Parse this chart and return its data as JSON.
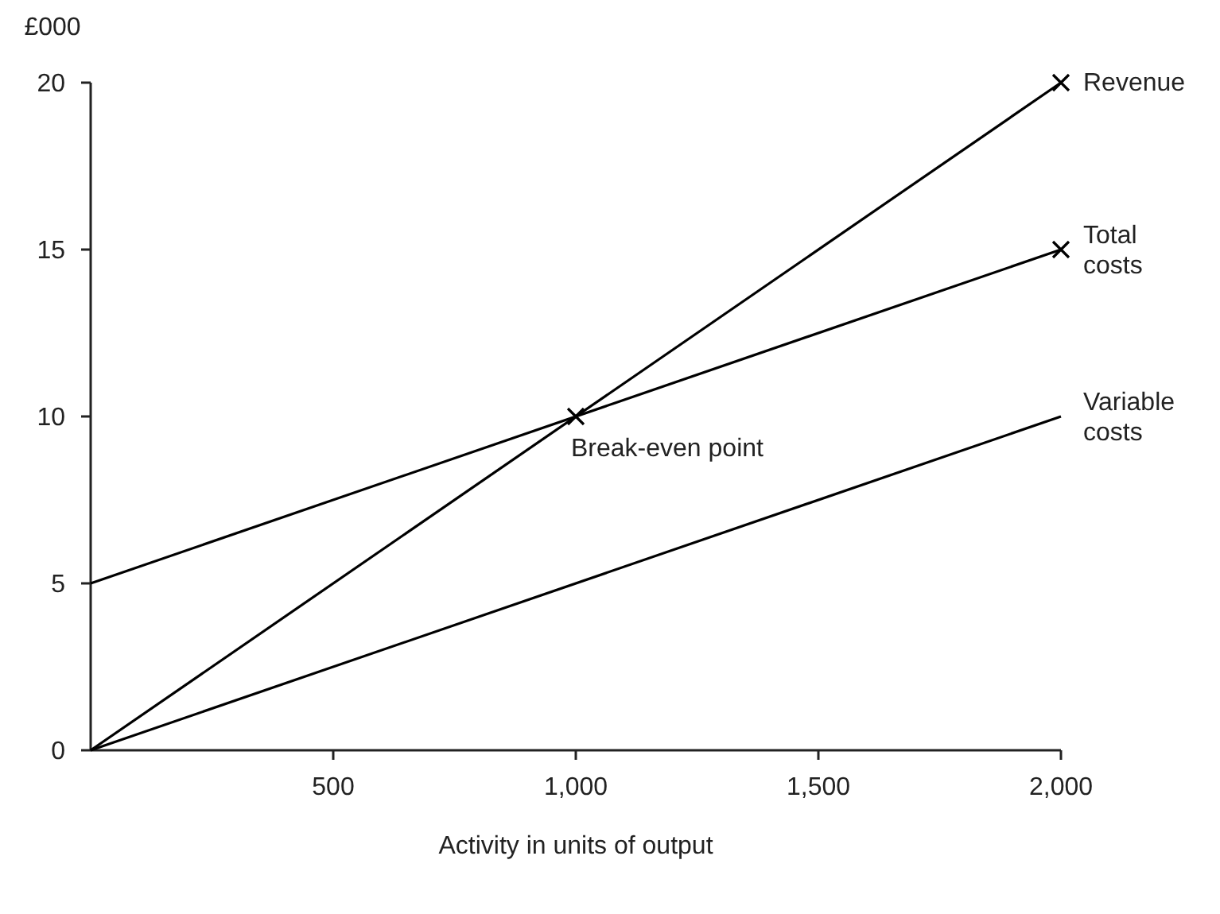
{
  "chart_data": {
    "type": "line",
    "ylabel": "£000",
    "xlabel": "Activity in units of output",
    "xlim": [
      0,
      2000
    ],
    "ylim": [
      0,
      20
    ],
    "xticks": [
      {
        "value": 500,
        "label": "500"
      },
      {
        "value": 1000,
        "label": "1,000"
      },
      {
        "value": 1500,
        "label": "1,500"
      },
      {
        "value": 2000,
        "label": "2,000"
      }
    ],
    "yticks": [
      0,
      5,
      10,
      15,
      20
    ],
    "grid": false,
    "legend": false,
    "marker": "none",
    "line_style": "solid",
    "series": [
      {
        "name": "Revenue",
        "color": "#000000",
        "x": [
          0,
          2000
        ],
        "values": [
          0,
          20
        ]
      },
      {
        "name": "Total costs",
        "color": "#000000",
        "x": [
          0,
          2000
        ],
        "values": [
          5,
          15
        ]
      },
      {
        "name": "Variable costs",
        "color": "#000000",
        "x": [
          0,
          2000
        ],
        "values": [
          0,
          10
        ]
      },
      {
        "type": "scatter",
        "marker": "cross",
        "color": "#000000",
        "x": [
          1000,
          2000,
          2000
        ],
        "values": [
          10,
          20,
          15
        ]
      }
    ],
    "annotations": [
      {
        "text": "Break-even point",
        "x": 1000,
        "y": 10
      }
    ]
  }
}
